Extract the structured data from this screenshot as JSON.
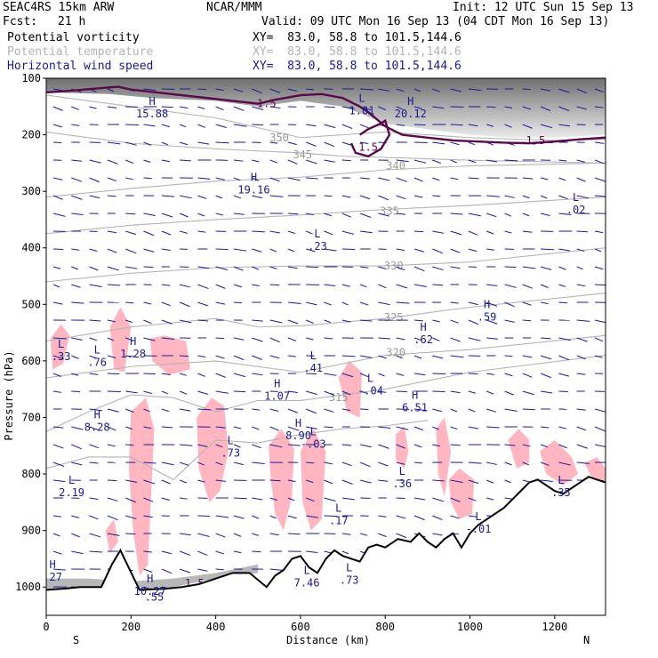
{
  "header": {
    "model": "SEAC4RS 15km ARW",
    "org": "NCAR/MMM",
    "init": "Init: 12 UTC Sun 15 Sep 13",
    "fcst_label": "Fcst:",
    "fcst_value": "21 h",
    "valid": "Valid: 09 UTC Mon 16 Sep 13 (04 CDT Mon 16 Sep 13)",
    "fields": [
      {
        "name": "Potential vorticity",
        "xy": "XY=  83.0, 58.8 to 101.5,144.6",
        "color": "#000000"
      },
      {
        "name": "Potential temperature",
        "xy": "XY=  83.0, 58.8 to 101.5,144.6",
        "color": "#b4b4b4"
      },
      {
        "name": "Horizontal wind speed",
        "xy": "XY=  83.0, 58.8 to 101.5,144.6",
        "color": "#1a1a8c"
      }
    ]
  },
  "colors": {
    "pv_line": "#5a0a4a",
    "theta_line": "#b4b4b4",
    "wind": "#1a1a9c",
    "pink": "#ffb6c1",
    "pv_high_text": "#1a1a8c",
    "terrain": "#000000"
  },
  "chart_data": {
    "type": "cross-section",
    "xlabel": "Distance (km)",
    "ylabel": "Pressure (hPa)",
    "x_ticks": [
      "0",
      "200",
      "400",
      "600",
      "800",
      "1000",
      "1200"
    ],
    "y_ticks": [
      "100",
      "200",
      "300",
      "400",
      "500",
      "600",
      "700",
      "800",
      "900",
      "1000"
    ],
    "xlim": [
      0,
      1320
    ],
    "ylim": [
      1050,
      100
    ],
    "left_end_label": "S",
    "right_end_label": "N",
    "grid": false,
    "pv_contour_labels": [
      {
        "text": "1.5",
        "x": 520,
        "p": 145
      },
      {
        "text": "1.5",
        "x": 760,
        "p": 222
      },
      {
        "text": "1.5",
        "x": 1155,
        "p": 210
      },
      {
        "text": "1.5",
        "x": 350,
        "p": 993
      }
    ],
    "theta_contours": [
      {
        "level": "350",
        "label_x": 550,
        "label_p": 205,
        "x": [
          0,
          200,
          400,
          600,
          800,
          1000,
          1200,
          1320
        ],
        "p": [
          130,
          150,
          170,
          205,
          195,
          205,
          210,
          208
        ]
      },
      {
        "level": "345",
        "label_x": 605,
        "label_p": 235,
        "x": [
          0,
          200,
          400,
          600,
          700,
          800,
          1000,
          1320
        ],
        "p": [
          195,
          215,
          225,
          232,
          238,
          240,
          245,
          250
        ]
      },
      {
        "level": "340",
        "label_x": 825,
        "label_p": 255,
        "x": [
          0,
          200,
          400,
          600,
          800,
          1000,
          1320
        ],
        "p": [
          310,
          295,
          282,
          275,
          262,
          255,
          250
        ]
      },
      {
        "level": "335",
        "label_x": 810,
        "label_p": 335,
        "x": [
          0,
          200,
          400,
          600,
          800,
          1000,
          1320
        ],
        "p": [
          375,
          360,
          350,
          342,
          332,
          325,
          310
        ]
      },
      {
        "level": "330",
        "label_x": 820,
        "label_p": 432,
        "x": [
          0,
          200,
          400,
          600,
          800,
          1000,
          1320
        ],
        "p": [
          460,
          445,
          435,
          432,
          432,
          425,
          400
        ]
      },
      {
        "level": "325",
        "label_x": 820,
        "label_p": 523,
        "x": [
          0,
          200,
          400,
          500,
          600,
          800,
          1000,
          1320
        ],
        "p": [
          565,
          540,
          525,
          540,
          538,
          525,
          505,
          480
        ]
      },
      {
        "level": "320",
        "label_x": 825,
        "label_p": 585,
        "x": [
          0,
          200,
          400,
          600,
          800,
          1000,
          1320
        ],
        "p": [
          630,
          610,
          600,
          620,
          590,
          580,
          555
        ]
      },
      {
        "level": "315",
        "label_x": 690,
        "label_p": 665,
        "x": [
          0,
          100,
          200,
          300,
          400,
          500,
          600,
          700,
          800,
          1000,
          1320
        ],
        "p": [
          725,
          690,
          660,
          665,
          690,
          670,
          670,
          660,
          650,
          620,
          590
        ]
      },
      {
        "level": "",
        "label_x": 0,
        "label_p": 0,
        "x": [
          0,
          100,
          200,
          300,
          400,
          500,
          600,
          700,
          800,
          900
        ],
        "p": [
          790,
          770,
          770,
          810,
          740,
          745,
          730,
          720,
          715,
          705
        ]
      }
    ],
    "pv_extrema": [
      {
        "type": "H",
        "value": "15.88",
        "x": 250,
        "p": 150
      },
      {
        "type": "L",
        "value": "1.01",
        "x": 745,
        "p": 145
      },
      {
        "type": "H",
        "value": "20.12",
        "x": 860,
        "p": 150
      },
      {
        "type": "H",
        "value": "19.16",
        "x": 490,
        "p": 285
      },
      {
        "type": "L",
        "value": ".02",
        "x": 1250,
        "p": 320
      },
      {
        "type": "L",
        "value": ".23",
        "x": 640,
        "p": 385
      },
      {
        "type": "H",
        "value": ".59",
        "x": 1040,
        "p": 510
      },
      {
        "type": "H",
        "value": ".62",
        "x": 890,
        "p": 550
      },
      {
        "type": "H",
        "value": "1.28",
        "x": 205,
        "p": 575
      },
      {
        "type": "L",
        "value": ".76",
        "x": 120,
        "p": 590
      },
      {
        "type": "L",
        "value": ".33",
        "x": 35,
        "p": 580
      },
      {
        "type": "L",
        "value": ".41",
        "x": 630,
        "p": 600
      },
      {
        "type": "H",
        "value": "1.07",
        "x": 545,
        "p": 650
      },
      {
        "type": "L",
        "value": "-.04",
        "x": 765,
        "p": 640
      },
      {
        "type": "H",
        "value": "6.51",
        "x": 870,
        "p": 670
      },
      {
        "type": "H",
        "value": "8.28",
        "x": 120,
        "p": 705
      },
      {
        "type": "H",
        "value": "8.90",
        "x": 595,
        "p": 720
      },
      {
        "type": "L",
        "value": "-.03",
        "x": 630,
        "p": 735
      },
      {
        "type": "L",
        "value": ".73",
        "x": 435,
        "p": 750
      },
      {
        "type": "L",
        "value": ".36",
        "x": 840,
        "p": 805
      },
      {
        "type": "L",
        "value": "2.19",
        "x": 60,
        "p": 820
      },
      {
        "type": "L",
        "value": ".17",
        "x": 690,
        "p": 870
      },
      {
        "type": "L",
        "value": "-.01",
        "x": 1020,
        "p": 885
      },
      {
        "type": "L",
        "value": ".35",
        "x": 1215,
        "p": 820
      },
      {
        "type": "H",
        "value": ".27",
        "x": 15,
        "p": 970
      },
      {
        "type": "L",
        "value": "7.46",
        "x": 615,
        "p": 980
      },
      {
        "type": "H",
        "value": "10.27",
        "x": 245,
        "p": 995
      },
      {
        "type": "L",
        "value": ".73",
        "x": 715,
        "p": 975
      },
      {
        "type": "",
        "value": ".55",
        "x": 255,
        "p": 1005
      }
    ],
    "terrain": {
      "x": [
        0,
        40,
        80,
        130,
        155,
        175,
        220,
        280,
        320,
        360,
        400,
        440,
        480,
        520,
        540,
        560,
        580,
        600,
        620,
        640,
        660,
        680,
        700,
        740,
        760,
        780,
        800,
        830,
        860,
        880,
        900,
        920,
        940,
        960,
        980,
        1000,
        1020,
        1040,
        1060,
        1080,
        1100,
        1120,
        1140,
        1160,
        1180,
        1200,
        1220,
        1240,
        1260,
        1280,
        1300,
        1320
      ],
      "p": [
        1005,
        1003,
        1000,
        1000,
        960,
        935,
        1005,
        1003,
        1000,
        995,
        985,
        975,
        975,
        1000,
        980,
        970,
        950,
        945,
        965,
        975,
        950,
        935,
        945,
        955,
        930,
        925,
        930,
        915,
        920,
        905,
        920,
        930,
        915,
        905,
        930,
        905,
        890,
        880,
        870,
        860,
        845,
        830,
        815,
        810,
        820,
        830,
        835,
        825,
        815,
        805,
        810,
        815
      ]
    }
  }
}
